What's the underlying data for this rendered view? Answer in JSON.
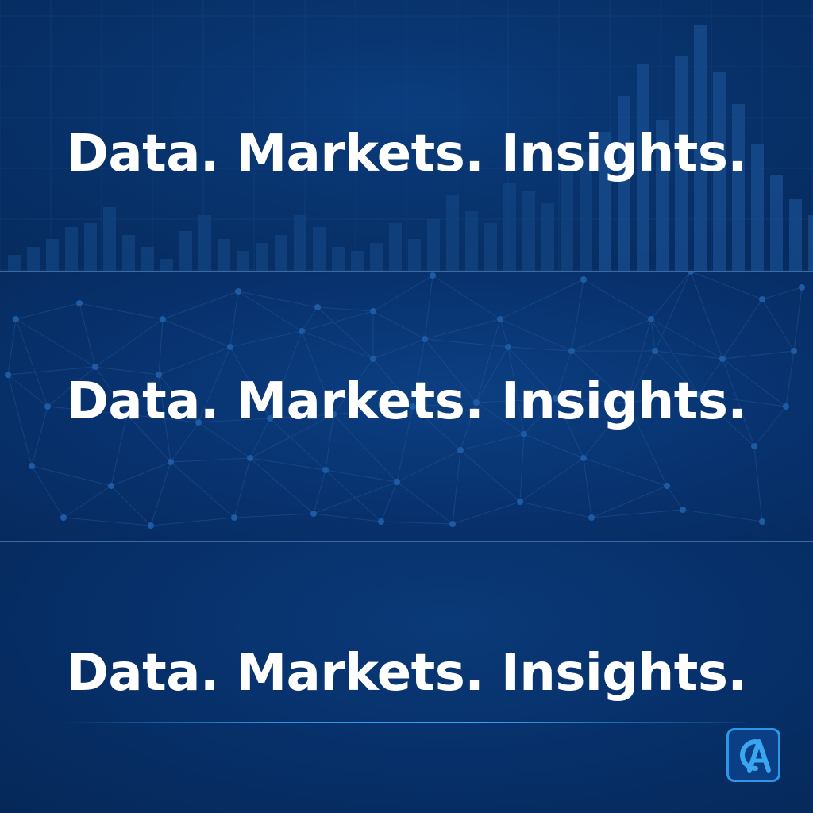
{
  "panels": [
    {
      "tagline": "Data. Markets. Insights.",
      "background": "bar-chart"
    },
    {
      "tagline": "Data. Markets. Insights.",
      "background": "network-nodes"
    },
    {
      "tagline": "Data. Markets. Insights.",
      "background": "plain-gradient"
    }
  ],
  "logo": {
    "name": "brand-logo-icon",
    "letters": "CA"
  },
  "colors": {
    "background": "#062a5c",
    "text": "#ffffff",
    "accent": "#2f95e6",
    "divider": "#3d6aa6"
  }
}
